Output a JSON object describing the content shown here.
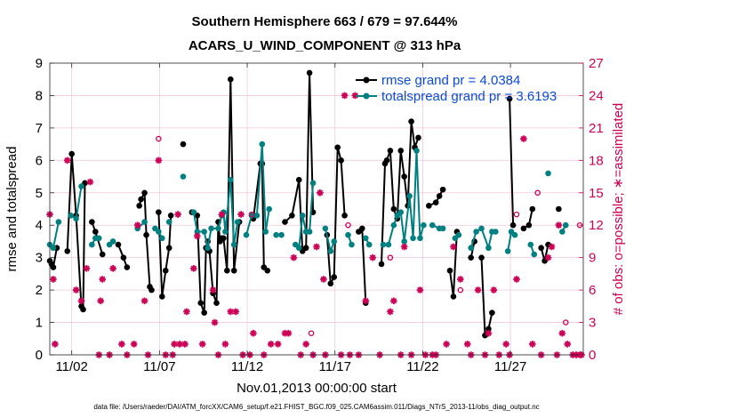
{
  "colors": {
    "rmse": "#000000",
    "totalspread": "#008080",
    "obs": "#cc0055",
    "legend_text": "#0a4cd6",
    "grid": "#f0c8dc"
  },
  "chart_data": {
    "type": "line",
    "title": "Southern Hemisphere 663 / 679 = 97.644%",
    "subtitle": "ACARS_U_WIND_COMPONENT @ 313 hPa",
    "xlabel": "Nov.01,2013 00:00:00 start",
    "ylabel_left": "rmse and totalspread",
    "ylabel_right": "# of obs: o=possible; ∗=assimilated",
    "footnote": "data file: /Users/raeder/DAI/ATM_forcXX/CAM6_setup/f.e21.FHIST_BGC.f09_025.CAM6assim.011/Diags_NTrS_2013-11/obs_diag_output.nc",
    "xlim": [
      0.0,
      30.4
    ],
    "ylim_left": [
      0,
      9
    ],
    "ylim_right": [
      0,
      27
    ],
    "x_ticks": [
      1.25,
      6.25,
      11.25,
      16.25,
      21.25,
      26.25
    ],
    "x_tick_labels": [
      "11/02",
      "11/07",
      "11/12",
      "11/17",
      "11/22",
      "11/27"
    ],
    "y_left_ticks": [
      0,
      1,
      2,
      3,
      4,
      5,
      6,
      7,
      8,
      9
    ],
    "y_right_ticks": [
      0,
      3,
      6,
      9,
      12,
      15,
      18,
      21,
      24,
      27
    ],
    "grid": true,
    "legend_position": "top-right",
    "series": [
      {
        "name": "rmse grand pr = 4.0384",
        "segments": [
          [
            [
              0.0,
              2.9
            ],
            [
              0.1,
              2.8
            ],
            [
              0.2,
              2.7
            ],
            [
              0.4,
              3.3
            ]
          ],
          [
            [
              1.0,
              3.2
            ],
            [
              1.25,
              6.2
            ],
            [
              1.5,
              4.3
            ],
            [
              1.8,
              1.5
            ],
            [
              1.9,
              1.4
            ],
            [
              2.0,
              5.3
            ]
          ],
          [
            [
              2.4,
              4.1
            ],
            [
              2.6,
              3.8
            ],
            [
              3.0,
              3.1
            ]
          ],
          [
            [
              3.9,
              3.4
            ],
            [
              4.2,
              3.0
            ],
            [
              4.4,
              2.7
            ]
          ],
          [
            [
              5.1,
              4.6
            ],
            [
              5.2,
              4.8
            ],
            [
              5.4,
              5.0
            ],
            [
              5.5,
              3.7
            ],
            [
              5.7,
              2.1
            ],
            [
              5.8,
              2.0
            ]
          ],
          [
            [
              6.2,
              4.4
            ],
            [
              6.4,
              1.8
            ],
            [
              6.6,
              2.6
            ],
            [
              6.8,
              3.3
            ],
            [
              6.9,
              4.3
            ]
          ],
          [
            [
              7.6,
              6.5
            ]
          ],
          [
            [
              8.1,
              4.4
            ],
            [
              8.4,
              4.3
            ],
            [
              8.6,
              1.6
            ],
            [
              8.8,
              1.3
            ],
            [
              8.9,
              3.3
            ],
            [
              9.0,
              3.5
            ],
            [
              9.1,
              3.2
            ],
            [
              9.3,
              1.9
            ],
            [
              9.5,
              1.6
            ],
            [
              9.6,
              4.1
            ],
            [
              9.7,
              3.5
            ],
            [
              9.8,
              3.6
            ],
            [
              9.9,
              3.6
            ],
            [
              10.1,
              2.6
            ],
            [
              10.3,
              8.5
            ],
            [
              10.5,
              2.6
            ],
            [
              10.8,
              4.1
            ]
          ],
          [
            [
              11.6,
              4.2
            ],
            [
              12.0,
              5.9
            ],
            [
              12.1,
              5.9
            ],
            [
              12.2,
              2.7
            ],
            [
              12.4,
              2.6
            ]
          ],
          [
            [
              13.4,
              4.1
            ],
            [
              13.8,
              4.3
            ],
            [
              14.2,
              5.4
            ],
            [
              14.4,
              3.2
            ],
            [
              14.6,
              3.3
            ],
            [
              14.8,
              8.7
            ],
            [
              15.0,
              4.4
            ]
          ],
          [
            [
              15.8,
              3.7
            ],
            [
              16.0,
              2.2
            ],
            [
              16.2,
              2.4
            ],
            [
              16.4,
              6.4
            ],
            [
              16.6,
              6.0
            ],
            [
              16.8,
              4.3
            ]
          ],
          [
            [
              17.6,
              3.8
            ],
            [
              17.8,
              3.9
            ],
            [
              18.0,
              1.6
            ]
          ],
          [
            [
              18.9,
              2.8
            ],
            [
              19.1,
              5.9
            ],
            [
              19.2,
              6.0
            ],
            [
              19.4,
              6.3
            ],
            [
              19.6,
              4.5
            ],
            [
              19.8,
              4.2
            ],
            [
              20.0,
              6.3
            ],
            [
              20.2,
              5.5
            ],
            [
              20.4,
              4.6
            ],
            [
              20.6,
              7.2
            ],
            [
              20.8,
              6.4
            ],
            [
              21.0,
              6.7
            ]
          ],
          [
            [
              21.6,
              4.6
            ],
            [
              22.0,
              4.7
            ],
            [
              22.2,
              4.9
            ],
            [
              22.4,
              5.1
            ]
          ],
          [
            [
              22.8,
              2.6
            ],
            [
              23.0,
              1.8
            ],
            [
              23.2,
              3.8
            ]
          ],
          [
            [
              24.0,
              3.0
            ],
            [
              24.2,
              3.5
            ]
          ],
          [
            [
              24.6,
              3.0
            ],
            [
              24.8,
              0.6
            ],
            [
              25.0,
              0.8
            ],
            [
              25.2,
              1.3
            ]
          ],
          [
            [
              26.2,
              7.9
            ],
            [
              26.4,
              4.0
            ]
          ],
          [
            [
              27.0,
              3.9
            ],
            [
              27.3,
              4.0
            ],
            [
              27.5,
              4.5
            ]
          ],
          [
            [
              28.0,
              3.3
            ],
            [
              28.2,
              2.9
            ],
            [
              28.4,
              3.4
            ]
          ],
          [
            [
              29.0,
              4.5
            ]
          ]
        ]
      },
      {
        "name": "totalspread grand pr = 3.6193",
        "segments": [
          [
            [
              0.0,
              3.4
            ],
            [
              0.2,
              3.3
            ],
            [
              0.5,
              4.1
            ]
          ],
          [
            [
              1.2,
              4.3
            ],
            [
              1.5,
              4.2
            ],
            [
              1.8,
              5.2
            ]
          ],
          [
            [
              2.4,
              3.4
            ],
            [
              2.6,
              3.6
            ],
            [
              2.8,
              3.6
            ]
          ],
          [
            [
              3.4,
              3.4
            ],
            [
              3.6,
              3.5
            ]
          ],
          [
            [
              5.0,
              3.9
            ],
            [
              5.4,
              4.1
            ]
          ],
          [
            [
              6.0,
              3.9
            ],
            [
              6.2,
              3.8
            ],
            [
              6.4,
              3.6
            ]
          ],
          [
            [
              6.8,
              4.1
            ]
          ],
          [
            [
              7.6,
              5.5
            ]
          ],
          [
            [
              8.2,
              4.4
            ],
            [
              8.4,
              3.8
            ],
            [
              8.8,
              3.8
            ],
            [
              9.0,
              3.3
            ],
            [
              9.2,
              3.9
            ],
            [
              9.6,
              3.9
            ],
            [
              9.8,
              4.3
            ],
            [
              9.9,
              4.4
            ],
            [
              10.0,
              3.8
            ],
            [
              10.3,
              5.4
            ],
            [
              10.5,
              3.4
            ],
            [
              10.7,
              4.1
            ]
          ],
          [
            [
              11.2,
              3.7
            ],
            [
              11.5,
              4.3
            ],
            [
              11.8,
              4.3
            ],
            [
              12.1,
              6.5
            ],
            [
              12.3,
              3.8
            ],
            [
              12.5,
              4.5
            ]
          ],
          [
            [
              12.9,
              3.7
            ],
            [
              13.2,
              3.7
            ]
          ],
          [
            [
              14.0,
              3.4
            ],
            [
              14.2,
              3.3
            ],
            [
              14.4,
              4.3
            ],
            [
              14.6,
              3.8
            ],
            [
              14.8,
              3.8
            ],
            [
              15.0,
              5.3
            ]
          ],
          [
            [
              15.7,
              3.9
            ],
            [
              16.0,
              3.2
            ],
            [
              16.2,
              3.5
            ]
          ],
          [
            [
              17.0,
              3.7
            ],
            [
              17.2,
              3.4
            ]
          ],
          [
            [
              18.0,
              3.6
            ],
            [
              18.2,
              3.4
            ]
          ],
          [
            [
              19.0,
              3.4
            ],
            [
              19.3,
              3.4
            ],
            [
              19.6,
              4.0
            ],
            [
              19.8,
              4.3
            ],
            [
              20.0,
              4.4
            ],
            [
              20.2,
              3.5
            ],
            [
              20.5,
              4.9
            ],
            [
              20.7,
              3.6
            ],
            [
              20.9,
              6.3
            ],
            [
              21.1,
              3.6
            ],
            [
              21.3,
              4.0
            ]
          ],
          [
            [
              21.8,
              4.0
            ],
            [
              22.2,
              3.9
            ],
            [
              22.4,
              3.9
            ]
          ],
          [
            [
              23.1,
              3.6
            ],
            [
              23.3,
              3.7
            ]
          ],
          [
            [
              24.0,
              3.3
            ],
            [
              24.3,
              3.8
            ],
            [
              24.6,
              3.9
            ],
            [
              25.0,
              3.3
            ],
            [
              25.2,
              3.8
            ],
            [
              25.4,
              3.8
            ]
          ],
          [
            [
              26.1,
              3.2
            ],
            [
              26.3,
              3.8
            ],
            [
              26.5,
              3.7
            ]
          ],
          [
            [
              27.4,
              3.4
            ],
            [
              27.6,
              3.1
            ]
          ],
          [
            [
              28.4,
              5.6
            ]
          ],
          [
            [
              29.2,
              3.8
            ],
            [
              29.4,
              4.0
            ]
          ]
        ]
      }
    ],
    "obs_assimilated": [
      [
        0.0,
        13
      ],
      [
        0.2,
        7
      ],
      [
        0.3,
        1
      ],
      [
        1.0,
        18
      ],
      [
        1.5,
        6
      ],
      [
        1.8,
        5
      ],
      [
        2.1,
        8
      ],
      [
        2.3,
        16
      ],
      [
        2.8,
        0
      ],
      [
        2.9,
        5
      ],
      [
        3.0,
        7
      ],
      [
        3.4,
        0
      ],
      [
        3.6,
        8
      ],
      [
        4.1,
        1
      ],
      [
        4.4,
        0
      ],
      [
        4.8,
        1
      ],
      [
        5.0,
        12
      ],
      [
        5.4,
        5
      ],
      [
        5.6,
        0
      ],
      [
        6.2,
        18
      ],
      [
        6.6,
        0
      ],
      [
        7.0,
        0
      ],
      [
        7.1,
        1
      ],
      [
        7.3,
        13
      ],
      [
        7.4,
        1
      ],
      [
        7.7,
        1
      ],
      [
        7.8,
        4
      ],
      [
        8.2,
        8
      ],
      [
        8.4,
        11
      ],
      [
        8.7,
        1
      ],
      [
        9.3,
        6
      ],
      [
        9.4,
        3
      ],
      [
        9.6,
        0
      ],
      [
        9.8,
        13
      ],
      [
        10.0,
        1
      ],
      [
        10.3,
        4
      ],
      [
        10.6,
        4
      ],
      [
        10.9,
        13
      ],
      [
        11.0,
        0
      ],
      [
        11.4,
        0
      ],
      [
        11.6,
        2
      ],
      [
        12.2,
        0
      ],
      [
        12.6,
        1
      ],
      [
        13.0,
        1
      ],
      [
        13.4,
        2
      ],
      [
        13.6,
        2
      ],
      [
        13.9,
        9
      ],
      [
        14.3,
        0
      ],
      [
        14.6,
        1
      ],
      [
        15.0,
        0
      ],
      [
        15.2,
        10
      ],
      [
        15.4,
        15
      ],
      [
        15.6,
        7
      ],
      [
        15.7,
        0
      ],
      [
        16.6,
        0
      ],
      [
        16.8,
        24
      ],
      [
        17.1,
        0
      ],
      [
        17.4,
        24
      ],
      [
        17.6,
        0
      ],
      [
        18.0,
        5
      ],
      [
        18.4,
        9
      ],
      [
        18.8,
        0
      ],
      [
        19.4,
        4
      ],
      [
        19.6,
        5
      ],
      [
        20.0,
        0
      ],
      [
        20.2,
        10
      ],
      [
        20.6,
        0
      ],
      [
        21.1,
        6
      ],
      [
        21.4,
        0
      ],
      [
        21.8,
        0
      ],
      [
        22.0,
        0
      ],
      [
        22.6,
        1
      ],
      [
        23.0,
        10
      ],
      [
        23.4,
        7
      ],
      [
        23.8,
        1
      ],
      [
        24.0,
        0
      ],
      [
        24.4,
        6
      ],
      [
        24.8,
        0
      ],
      [
        25.0,
        2
      ],
      [
        25.3,
        6
      ],
      [
        25.6,
        0
      ],
      [
        26.0,
        1
      ],
      [
        26.2,
        0
      ],
      [
        26.6,
        7
      ],
      [
        27.0,
        20
      ],
      [
        27.5,
        1
      ],
      [
        28.0,
        0
      ],
      [
        28.4,
        9
      ],
      [
        28.6,
        10
      ],
      [
        28.9,
        0
      ],
      [
        29.0,
        12
      ],
      [
        29.2,
        2
      ],
      [
        29.5,
        1
      ],
      [
        29.8,
        0
      ],
      [
        30.0,
        0
      ],
      [
        30.2,
        0
      ],
      [
        30.3,
        0
      ]
    ],
    "obs_possible": [
      [
        6.2,
        20
      ],
      [
        11.5,
        13
      ],
      [
        14.9,
        2
      ],
      [
        17.0,
        12
      ],
      [
        19.4,
        9
      ],
      [
        23.4,
        6
      ],
      [
        26.6,
        13
      ],
      [
        27.8,
        15
      ],
      [
        29.4,
        3
      ],
      [
        30.2,
        12
      ]
    ]
  }
}
